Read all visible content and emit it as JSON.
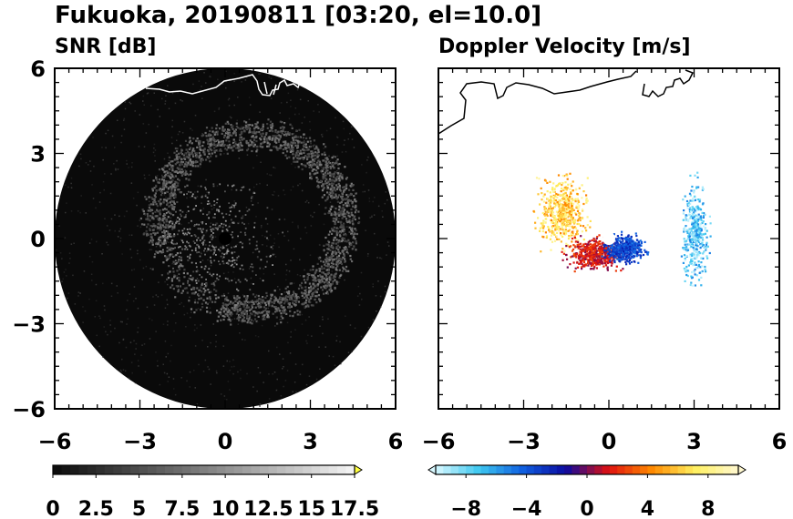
{
  "figure": {
    "title": "Fukuoka, 20190811 [03:20, el=10.0]"
  },
  "colors": {
    "snr_disk": "#0a0a0a",
    "coast_on_dark": "#ffffff",
    "coast_on_light": "#000000"
  },
  "chart_data": [
    {
      "type": "heatmap",
      "title": "SNR [dB]",
      "projection": "polar-radar-ppi",
      "x_ticks": [
        "−6",
        "−3",
        "0",
        "3",
        "6"
      ],
      "y_ticks": [
        "6",
        "3",
        "0",
        "−3",
        "−6"
      ],
      "xlim": [
        -6,
        6
      ],
      "ylim": [
        -6,
        6
      ],
      "range_max": 6,
      "center_blank_radius": 0.25,
      "colorbar": {
        "ticks": [
          "0",
          "2.5",
          "5",
          "7.5",
          "10",
          "12.5",
          "15",
          "17.5"
        ],
        "range": [
          0,
          17.5
        ],
        "step": 0.5,
        "extend": "max",
        "colors": [
          "#0a0a0a",
          "#f5f5f5"
        ]
      },
      "echo_ring": {
        "center": [
          0.9,
          0.6
        ],
        "radius": 3.1,
        "width": 0.9,
        "snr_level": 6,
        "gap_direction": "south-west"
      }
    },
    {
      "type": "heatmap",
      "title": "Doppler Velocity [m/s]",
      "projection": "polar-radar-ppi",
      "x_ticks": [
        "−6",
        "−3",
        "0",
        "3",
        "6"
      ],
      "y_ticks": [],
      "xlim": [
        -6,
        6
      ],
      "ylim": [
        -6,
        6
      ],
      "center_blank_radius": 0.25,
      "colorbar": {
        "ticks": [
          "−8",
          "−4",
          "0",
          "4",
          "8"
        ],
        "range": [
          -10,
          10
        ],
        "step": 0.5,
        "extend": "both",
        "colors": [
          "#d8f8ff",
          "#3ec8f0",
          "#1060e0",
          "#0a0aa0",
          "#e01010",
          "#ff8a00",
          "#fff060",
          "#fff8d0"
        ]
      },
      "echoes": [
        {
          "region": "west",
          "center": [
            -1.7,
            1.0
          ],
          "velocity_range": [
            4,
            9
          ]
        },
        {
          "region": "near-west",
          "center": [
            -0.5,
            -0.5
          ],
          "velocity_range": [
            0,
            3
          ]
        },
        {
          "region": "near-east",
          "center": [
            0.5,
            -0.3
          ],
          "velocity_range": [
            -5,
            -2
          ]
        },
        {
          "region": "east",
          "center": [
            3.0,
            0.3
          ],
          "velocity_range": [
            -10,
            -5
          ]
        }
      ]
    }
  ]
}
